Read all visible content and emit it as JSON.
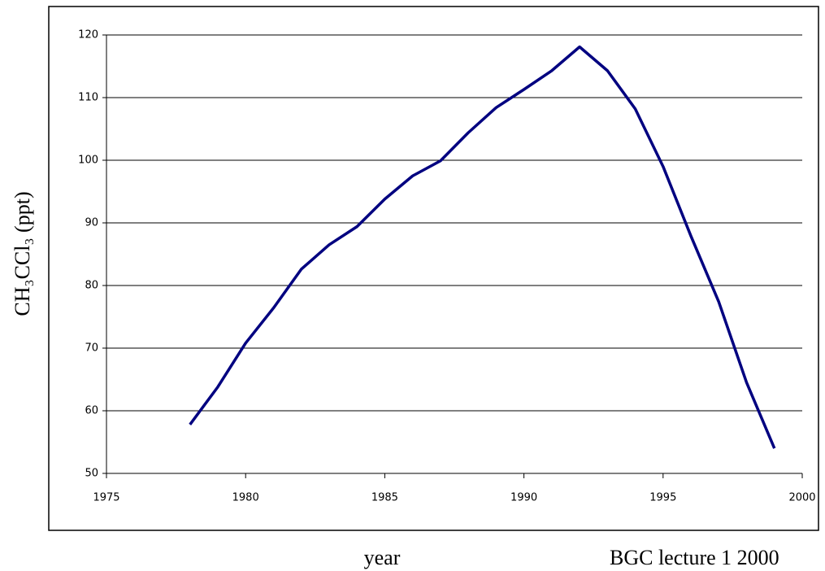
{
  "chart_data": {
    "type": "line",
    "y_label": "CH₃CCl₃ (ppt)",
    "x_label": "year",
    "annotation": "BGC lecture 1 2000",
    "x": [
      1978,
      1979,
      1980,
      1981,
      1982,
      1983,
      1984,
      1985,
      1986,
      1987,
      1988,
      1989,
      1990,
      1991,
      1992,
      1993,
      1994,
      1995,
      1996,
      1997,
      1998,
      1999
    ],
    "series": [
      {
        "name": "CH3CCl3",
        "color": "#000080",
        "values": [
          57.8,
          63.8,
          70.8,
          76.4,
          82.6,
          86.5,
          89.4,
          93.8,
          97.5,
          99.9,
          104.4,
          108.4,
          111.3,
          114.3,
          118.1,
          114.3,
          108.2,
          99,
          87.9,
          77.4,
          64.5,
          54
        ]
      }
    ],
    "xlim": [
      1975,
      2000
    ],
    "xticks": [
      1975,
      1980,
      1985,
      1990,
      1995,
      2000
    ],
    "ylim": [
      50,
      120
    ],
    "yticks": [
      50,
      60,
      70,
      80,
      90,
      100,
      110,
      120
    ],
    "grid": true
  }
}
